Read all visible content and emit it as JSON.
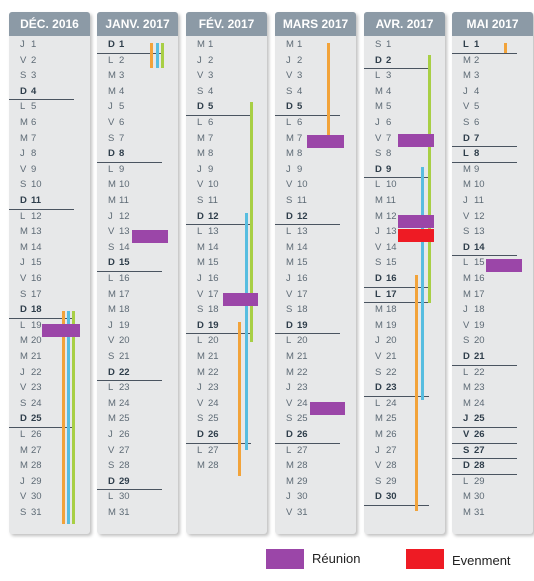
{
  "colors": {
    "header": "#8c9aa6",
    "reunion": "#9b46a8",
    "evenement": "#ee1b24",
    "orange": "#f2a33a",
    "green": "#a8cf45",
    "blue": "#57bde0"
  },
  "months": [
    {
      "title": "DÉC. 2016",
      "days": [
        {
          "l": "J",
          "n": "1"
        },
        {
          "l": "V",
          "n": "2"
        },
        {
          "l": "S",
          "n": "3"
        },
        {
          "l": "D",
          "n": "4",
          "bold": true
        },
        {
          "l": "L",
          "n": "5"
        },
        {
          "l": "M",
          "n": "6"
        },
        {
          "l": "M",
          "n": "7"
        },
        {
          "l": "J",
          "n": "8"
        },
        {
          "l": "V",
          "n": "9"
        },
        {
          "l": "S",
          "n": "10"
        },
        {
          "l": "D",
          "n": "11",
          "bold": true
        },
        {
          "l": "L",
          "n": "12"
        },
        {
          "l": "M",
          "n": "13"
        },
        {
          "l": "M",
          "n": "14"
        },
        {
          "l": "J",
          "n": "15"
        },
        {
          "l": "V",
          "n": "16"
        },
        {
          "l": "S",
          "n": "17"
        },
        {
          "l": "D",
          "n": "18",
          "bold": true
        },
        {
          "l": "L",
          "n": "19"
        },
        {
          "l": "M",
          "n": "20"
        },
        {
          "l": "M",
          "n": "21"
        },
        {
          "l": "J",
          "n": "22"
        },
        {
          "l": "V",
          "n": "23"
        },
        {
          "l": "S",
          "n": "24"
        },
        {
          "l": "D",
          "n": "25",
          "bold": true
        },
        {
          "l": "L",
          "n": "26"
        },
        {
          "l": "M",
          "n": "27"
        },
        {
          "l": "M",
          "n": "28"
        },
        {
          "l": "J",
          "n": "29"
        },
        {
          "l": "V",
          "n": "30"
        },
        {
          "l": "S",
          "n": "31"
        }
      ]
    },
    {
      "title": "JANV. 2017",
      "days": [
        {
          "l": "D",
          "n": "1",
          "bold": true
        },
        {
          "l": "L",
          "n": "2"
        },
        {
          "l": "M",
          "n": "3"
        },
        {
          "l": "M",
          "n": "4"
        },
        {
          "l": "J",
          "n": "5"
        },
        {
          "l": "V",
          "n": "6"
        },
        {
          "l": "S",
          "n": "7"
        },
        {
          "l": "D",
          "n": "8",
          "bold": true
        },
        {
          "l": "L",
          "n": "9"
        },
        {
          "l": "M",
          "n": "10"
        },
        {
          "l": "M",
          "n": "11"
        },
        {
          "l": "J",
          "n": "12"
        },
        {
          "l": "V",
          "n": "13"
        },
        {
          "l": "S",
          "n": "14"
        },
        {
          "l": "D",
          "n": "15",
          "bold": true
        },
        {
          "l": "L",
          "n": "16"
        },
        {
          "l": "M",
          "n": "17"
        },
        {
          "l": "M",
          "n": "18"
        },
        {
          "l": "J",
          "n": "19"
        },
        {
          "l": "V",
          "n": "20"
        },
        {
          "l": "S",
          "n": "21"
        },
        {
          "l": "D",
          "n": "22",
          "bold": true
        },
        {
          "l": "L",
          "n": "23"
        },
        {
          "l": "M",
          "n": "24"
        },
        {
          "l": "M",
          "n": "25"
        },
        {
          "l": "J",
          "n": "26"
        },
        {
          "l": "V",
          "n": "27"
        },
        {
          "l": "S",
          "n": "28"
        },
        {
          "l": "D",
          "n": "29",
          "bold": true
        },
        {
          "l": "L",
          "n": "30"
        },
        {
          "l": "M",
          "n": "31"
        }
      ]
    },
    {
      "title": "FÉV. 2017",
      "days": [
        {
          "l": "M",
          "n": "1"
        },
        {
          "l": "J",
          "n": "2"
        },
        {
          "l": "V",
          "n": "3"
        },
        {
          "l": "S",
          "n": "4"
        },
        {
          "l": "D",
          "n": "5",
          "bold": true
        },
        {
          "l": "L",
          "n": "6"
        },
        {
          "l": "M",
          "n": "7"
        },
        {
          "l": "M",
          "n": "8"
        },
        {
          "l": "J",
          "n": "9"
        },
        {
          "l": "V",
          "n": "10"
        },
        {
          "l": "S",
          "n": "11"
        },
        {
          "l": "D",
          "n": "12",
          "bold": true
        },
        {
          "l": "L",
          "n": "13"
        },
        {
          "l": "M",
          "n": "14"
        },
        {
          "l": "M",
          "n": "15"
        },
        {
          "l": "J",
          "n": "16"
        },
        {
          "l": "V",
          "n": "17"
        },
        {
          "l": "S",
          "n": "18"
        },
        {
          "l": "D",
          "n": "19",
          "bold": true
        },
        {
          "l": "L",
          "n": "20"
        },
        {
          "l": "M",
          "n": "21"
        },
        {
          "l": "M",
          "n": "22"
        },
        {
          "l": "J",
          "n": "23"
        },
        {
          "l": "V",
          "n": "24"
        },
        {
          "l": "S",
          "n": "25"
        },
        {
          "l": "D",
          "n": "26",
          "bold": true
        },
        {
          "l": "L",
          "n": "27"
        },
        {
          "l": "M",
          "n": "28"
        }
      ]
    },
    {
      "title": "MARS 2017",
      "days": [
        {
          "l": "M",
          "n": "1"
        },
        {
          "l": "J",
          "n": "2"
        },
        {
          "l": "V",
          "n": "3"
        },
        {
          "l": "S",
          "n": "4"
        },
        {
          "l": "D",
          "n": "5",
          "bold": true
        },
        {
          "l": "L",
          "n": "6"
        },
        {
          "l": "M",
          "n": "7"
        },
        {
          "l": "M",
          "n": "8"
        },
        {
          "l": "J",
          "n": "9"
        },
        {
          "l": "V",
          "n": "10"
        },
        {
          "l": "S",
          "n": "11"
        },
        {
          "l": "D",
          "n": "12",
          "bold": true
        },
        {
          "l": "L",
          "n": "13"
        },
        {
          "l": "M",
          "n": "14"
        },
        {
          "l": "M",
          "n": "15"
        },
        {
          "l": "J",
          "n": "16"
        },
        {
          "l": "V",
          "n": "17"
        },
        {
          "l": "S",
          "n": "18"
        },
        {
          "l": "D",
          "n": "19",
          "bold": true
        },
        {
          "l": "L",
          "n": "20"
        },
        {
          "l": "M",
          "n": "21"
        },
        {
          "l": "M",
          "n": "22"
        },
        {
          "l": "J",
          "n": "23"
        },
        {
          "l": "V",
          "n": "24"
        },
        {
          "l": "S",
          "n": "25"
        },
        {
          "l": "D",
          "n": "26",
          "bold": true
        },
        {
          "l": "L",
          "n": "27"
        },
        {
          "l": "M",
          "n": "28"
        },
        {
          "l": "M",
          "n": "29"
        },
        {
          "l": "J",
          "n": "30"
        },
        {
          "l": "V",
          "n": "31"
        }
      ]
    },
    {
      "title": "AVR. 2017",
      "days": [
        {
          "l": "S",
          "n": "1"
        },
        {
          "l": "D",
          "n": "2",
          "bold": true
        },
        {
          "l": "L",
          "n": "3"
        },
        {
          "l": "M",
          "n": "4"
        },
        {
          "l": "M",
          "n": "5"
        },
        {
          "l": "J",
          "n": "6"
        },
        {
          "l": "V",
          "n": "7"
        },
        {
          "l": "S",
          "n": "8"
        },
        {
          "l": "D",
          "n": "9",
          "bold": true
        },
        {
          "l": "L",
          "n": "10"
        },
        {
          "l": "M",
          "n": "11"
        },
        {
          "l": "M",
          "n": "12"
        },
        {
          "l": "J",
          "n": "13"
        },
        {
          "l": "V",
          "n": "14"
        },
        {
          "l": "S",
          "n": "15"
        },
        {
          "l": "D",
          "n": "16",
          "bold": true
        },
        {
          "l": "L",
          "n": "17",
          "bold": true
        },
        {
          "l": "M",
          "n": "18"
        },
        {
          "l": "M",
          "n": "19"
        },
        {
          "l": "J",
          "n": "20"
        },
        {
          "l": "V",
          "n": "21"
        },
        {
          "l": "S",
          "n": "22"
        },
        {
          "l": "D",
          "n": "23",
          "bold": true
        },
        {
          "l": "L",
          "n": "24"
        },
        {
          "l": "M",
          "n": "25"
        },
        {
          "l": "M",
          "n": "26"
        },
        {
          "l": "J",
          "n": "27"
        },
        {
          "l": "V",
          "n": "28"
        },
        {
          "l": "S",
          "n": "29"
        },
        {
          "l": "D",
          "n": "30",
          "bold": true
        }
      ]
    },
    {
      "title": "MAI 2017",
      "days": [
        {
          "l": "L",
          "n": "1",
          "bold": true
        },
        {
          "l": "M",
          "n": "2"
        },
        {
          "l": "M",
          "n": "3"
        },
        {
          "l": "J",
          "n": "4"
        },
        {
          "l": "V",
          "n": "5"
        },
        {
          "l": "S",
          "n": "6"
        },
        {
          "l": "D",
          "n": "7",
          "bold": true
        },
        {
          "l": "L",
          "n": "8",
          "bold": true
        },
        {
          "l": "M",
          "n": "9"
        },
        {
          "l": "M",
          "n": "10"
        },
        {
          "l": "J",
          "n": "11"
        },
        {
          "l": "V",
          "n": "12"
        },
        {
          "l": "S",
          "n": "13"
        },
        {
          "l": "D",
          "n": "14",
          "bold": true
        },
        {
          "l": "L",
          "n": "15"
        },
        {
          "l": "M",
          "n": "16"
        },
        {
          "l": "M",
          "n": "17"
        },
        {
          "l": "J",
          "n": "18"
        },
        {
          "l": "V",
          "n": "19"
        },
        {
          "l": "S",
          "n": "20"
        },
        {
          "l": "D",
          "n": "21",
          "bold": true
        },
        {
          "l": "L",
          "n": "22"
        },
        {
          "l": "M",
          "n": "23"
        },
        {
          "l": "M",
          "n": "24"
        },
        {
          "l": "J",
          "n": "25",
          "bold": true
        },
        {
          "l": "V",
          "n": "26",
          "bold": true
        },
        {
          "l": "S",
          "n": "27",
          "bold": true
        },
        {
          "l": "D",
          "n": "28",
          "bold": true
        },
        {
          "l": "L",
          "n": "29"
        },
        {
          "l": "M",
          "n": "30"
        },
        {
          "l": "M",
          "n": "31"
        }
      ]
    }
  ],
  "legend": {
    "reunion_label": "Réunion",
    "evenement_label": "Evenment"
  }
}
